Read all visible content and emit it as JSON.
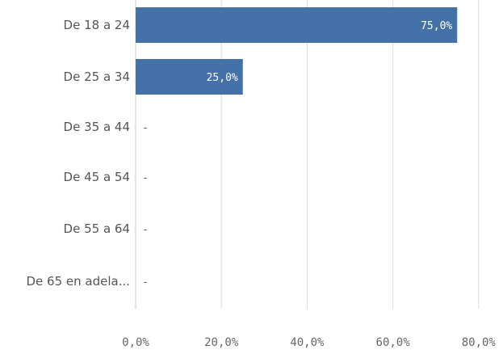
{
  "chart_data": {
    "type": "bar",
    "orientation": "horizontal",
    "categories": [
      "De 18 a 24",
      "De 25 a 34",
      "De 35 a 44",
      "De 45 a 54",
      "De 55 a 64",
      "De 65 en adela..."
    ],
    "values": [
      75.0,
      25.0,
      null,
      null,
      null,
      null
    ],
    "data_labels": [
      "75,0%",
      "25,0%",
      "-",
      "-",
      "-",
      "-"
    ],
    "x_ticks": [
      0,
      20,
      40,
      60,
      80
    ],
    "x_tick_labels": [
      "0,0%",
      "20,0%",
      "40,0%",
      "60,0%",
      "80,0%"
    ],
    "xlim": [
      0,
      80
    ],
    "grid": true,
    "title": "",
    "xlabel": "",
    "ylabel": "",
    "colors": {
      "bar": "#4472a8",
      "grid": "#dddddd",
      "label_inside": "#ffffff",
      "label_outside": "#555555"
    }
  }
}
